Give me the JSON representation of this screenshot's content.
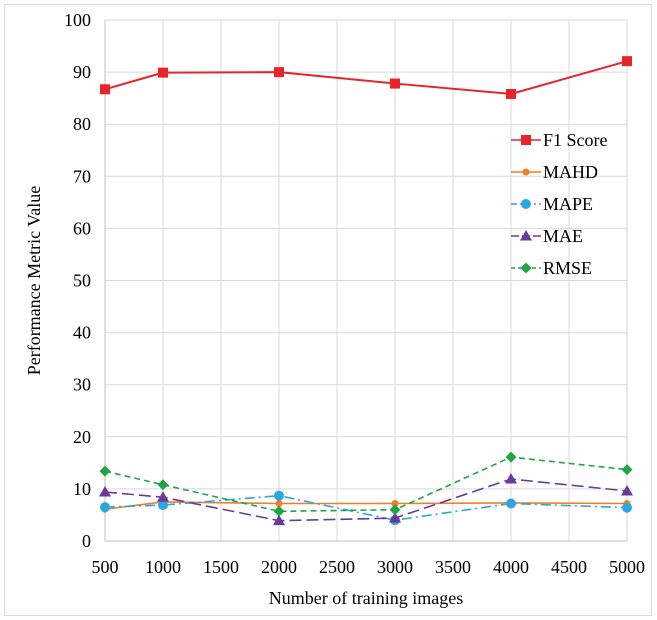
{
  "chart_data": {
    "type": "line",
    "title": "",
    "xlabel": "Number of training images",
    "ylabel": "Performance Metric Value",
    "xlim": [
      500,
      5000
    ],
    "ylim": [
      0,
      100
    ],
    "xticks": [
      500,
      1000,
      1500,
      2000,
      2500,
      3000,
      3500,
      4000,
      4500,
      5000
    ],
    "yticks": [
      0,
      10,
      20,
      30,
      40,
      50,
      60,
      70,
      80,
      90,
      100
    ],
    "grid": true,
    "legend_position": "right",
    "x": [
      500,
      1000,
      2000,
      3000,
      4000,
      5000
    ],
    "series": [
      {
        "name": "F1 Score",
        "values": [
          86.7,
          89.9,
          90.0,
          87.8,
          85.8,
          92.1
        ],
        "color": "#e8232a",
        "marker": "square",
        "dash": "solid"
      },
      {
        "name": "MAHD",
        "values": [
          6.1,
          7.5,
          7.2,
          7.2,
          7.3,
          7.2
        ],
        "color": "#f07f23",
        "marker": "circle-small",
        "dash": "solid"
      },
      {
        "name": "MAPE",
        "values": [
          6.5,
          6.9,
          8.7,
          4.0,
          7.2,
          6.4
        ],
        "color": "#2ba6de",
        "marker": "circle",
        "dash": "dashdot"
      },
      {
        "name": "MAE",
        "values": [
          9.4,
          8.4,
          3.9,
          4.4,
          11.9,
          9.6
        ],
        "color": "#6b3a98",
        "marker": "triangle",
        "dash": "longdash"
      },
      {
        "name": "RMSE",
        "values": [
          13.4,
          10.8,
          5.7,
          6.0,
          16.1,
          13.7
        ],
        "color": "#21a348",
        "marker": "diamond",
        "dash": "dashed"
      }
    ]
  }
}
